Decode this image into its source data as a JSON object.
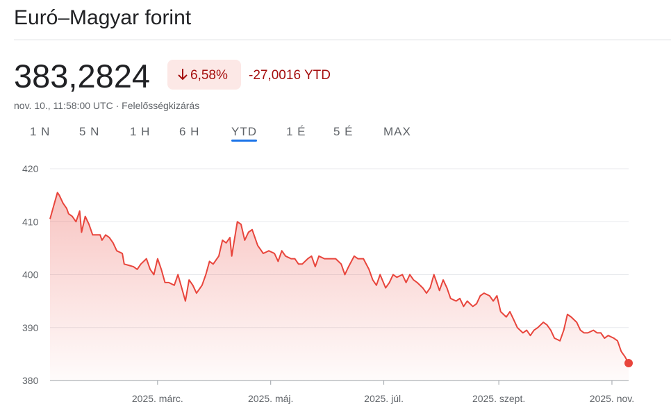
{
  "header": {
    "title": "Euró–Magyar forint",
    "price": "383,2824",
    "change": "6,58%",
    "change_ytd": "-27,0016 YTD",
    "timestamp": "nov. 10., 11:58:00 UTC",
    "separator": "·",
    "disclaimer": "Felelősségkizárás"
  },
  "tabs": {
    "items": [
      "1 N",
      "5 N",
      "1 H",
      "6 H",
      "YTD",
      "1 É",
      "5 É",
      "MAX"
    ],
    "active": 4
  },
  "chart_data": {
    "type": "line",
    "color": "#e8453c",
    "grid": true,
    "x": [
      2,
      4,
      6,
      7,
      9,
      11,
      12,
      14,
      16,
      18,
      19,
      21,
      23,
      25,
      27,
      29,
      30,
      32,
      34,
      36,
      38,
      41,
      42,
      45,
      47,
      49,
      51,
      54,
      56,
      58,
      60,
      62,
      64,
      66,
      69,
      71,
      73,
      75,
      77,
      79,
      81,
      84,
      86,
      88,
      90,
      93,
      95,
      97,
      99,
      100,
      103,
      105,
      107,
      109,
      111,
      114,
      117,
      120,
      123,
      125,
      127,
      129,
      132,
      134,
      136,
      138,
      141,
      143,
      145,
      147,
      150,
      153,
      156,
      159,
      161,
      163,
      166,
      168,
      171,
      174,
      176,
      178,
      180,
      183,
      185,
      187,
      189,
      192,
      194,
      196,
      198,
      200,
      203,
      205,
      207,
      209,
      212,
      214,
      216,
      218,
      221,
      223,
      225,
      227,
      230,
      232,
      234,
      236,
      239,
      241,
      243,
      245,
      248,
      250,
      252,
      254,
      257,
      259,
      261,
      263,
      265,
      268,
      270,
      272,
      274,
      277,
      279,
      281,
      283,
      286,
      288,
      290,
      292,
      295,
      297,
      299,
      301,
      303,
      306,
      308,
      310,
      312,
      314
    ],
    "values": [
      410.5,
      413,
      415.5,
      415,
      413.5,
      412.5,
      411.5,
      411,
      410,
      412,
      408,
      411,
      409.5,
      407.5,
      407.5,
      407.5,
      406.5,
      407.5,
      407,
      406,
      404.5,
      404,
      402,
      401.7,
      401.5,
      401,
      402,
      403,
      401,
      400,
      403,
      401,
      398.5,
      398.5,
      398,
      400,
      397.5,
      395,
      399,
      398,
      396.5,
      398,
      400,
      402.5,
      402,
      403.5,
      406.5,
      406,
      407,
      403.5,
      410,
      409.5,
      406.5,
      408,
      408.5,
      405.5,
      404,
      404.5,
      404,
      402.5,
      404.5,
      403.5,
      403,
      403,
      402,
      402,
      403,
      403.5,
      401.5,
      403.5,
      403,
      403,
      403,
      402,
      400,
      401.5,
      403.5,
      403,
      403,
      401,
      399,
      398,
      400,
      397.5,
      398.5,
      400,
      399.5,
      400,
      398.5,
      400,
      399,
      398.5,
      397.5,
      396.5,
      397.5,
      400,
      397,
      399,
      397.5,
      395.5,
      395,
      395.5,
      394,
      395,
      394,
      394.5,
      396,
      396.5,
      396,
      395,
      396,
      393,
      392,
      393,
      391.5,
      390,
      389,
      389.5,
      388.5,
      389.5,
      390,
      391,
      390.5,
      389.5,
      388,
      387.5,
      389.5,
      392.5,
      392,
      391,
      389.5,
      389,
      389,
      389.5,
      389,
      389,
      388,
      388.5,
      388,
      387.5,
      385.5,
      384.5,
      383.2824
    ],
    "xlim": [
      2,
      314
    ],
    "xticks": [
      {
        "value": 60,
        "label": "2025. márc."
      },
      {
        "value": 121,
        "label": "2025. máj."
      },
      {
        "value": 182,
        "label": "2025. júl."
      },
      {
        "value": 244,
        "label": "2025. szept."
      },
      {
        "value": 305,
        "label": "2025. nov."
      }
    ],
    "ylim": [
      380,
      420
    ],
    "yticks": [
      380,
      390,
      400,
      410,
      420
    ]
  }
}
